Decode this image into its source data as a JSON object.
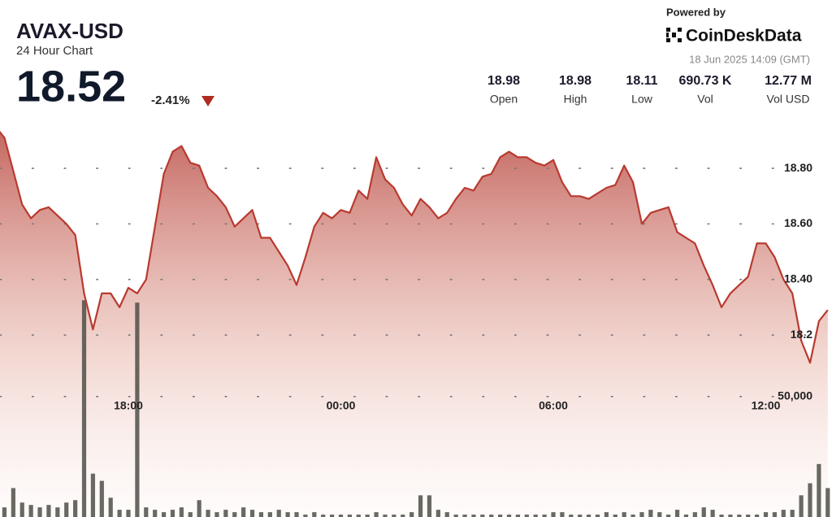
{
  "header": {
    "title": "AVAX-USD",
    "subtitle": "24 Hour Chart",
    "price": "18.52",
    "change": "-2.41%",
    "powered_by": "Powered by",
    "brand": "CoinDeskData",
    "timestamp": "18 Jun 2025 14:09 (GMT)",
    "stats": [
      {
        "value": "18.98",
        "label": "Open"
      },
      {
        "value": "18.98",
        "label": "High"
      },
      {
        "value": "18.11",
        "label": "Low"
      },
      {
        "value": "690.73 K",
        "label": "Vol"
      },
      {
        "value": "12.77 M",
        "label": "Vol USD"
      }
    ]
  },
  "chart_data": {
    "type": "line",
    "categories": [
      null,
      null,
      null,
      null,
      null,
      null,
      null,
      null,
      null,
      null,
      null,
      null,
      null,
      null,
      null,
      "18:00",
      null,
      null,
      null,
      null,
      null,
      null,
      null,
      null,
      null,
      null,
      null,
      null,
      null,
      null,
      null,
      null,
      null,
      null,
      null,
      null,
      null,
      null,
      null,
      "00:00",
      null,
      null,
      null,
      null,
      null,
      null,
      null,
      null,
      null,
      null,
      null,
      null,
      null,
      null,
      null,
      null,
      null,
      null,
      null,
      null,
      null,
      null,
      null,
      "06:00",
      null,
      null,
      null,
      null,
      null,
      null,
      null,
      null,
      null,
      null,
      null,
      null,
      null,
      null,
      null,
      null,
      null,
      null,
      null,
      null,
      null,
      null,
      null,
      "12:00",
      null,
      null,
      null,
      null,
      null,
      null,
      null
    ],
    "series": [
      {
        "color": "#b83a30",
        "values": [
          18.95,
          18.91,
          18.79,
          18.67,
          18.62,
          18.65,
          18.66,
          18.63,
          18.6,
          18.56,
          18.35,
          18.22,
          18.35,
          18.35,
          18.3,
          18.37,
          18.35,
          18.4,
          18.59,
          18.78,
          18.86,
          18.88,
          18.82,
          18.81,
          18.73,
          18.7,
          18.66,
          18.59,
          18.62,
          18.65,
          18.55,
          18.55,
          18.5,
          18.45,
          18.38,
          18.48,
          18.59,
          18.64,
          18.62,
          18.65,
          18.64,
          18.72,
          18.69,
          18.84,
          18.76,
          18.73,
          18.67,
          18.63,
          18.69,
          18.66,
          18.62,
          18.64,
          18.69,
          18.73,
          18.72,
          18.77,
          18.78,
          18.84,
          18.86,
          18.84,
          18.84,
          18.82,
          18.81,
          18.83,
          18.75,
          18.7,
          18.7,
          18.69,
          18.71,
          18.73,
          18.74,
          18.81,
          18.75,
          18.6,
          18.64,
          18.65,
          18.66,
          18.57,
          18.55,
          18.53,
          18.45,
          18.38,
          18.3,
          18.35,
          18.38,
          18.41,
          18.53,
          18.53,
          18.48,
          18.4,
          18.35,
          18.18,
          18.1,
          18.25,
          18.29
        ]
      },
      {
        "type": "bar",
        "axis": "y2",
        "color": "#4f4f48",
        "values": [
          4000,
          4000,
          12000,
          6000,
          5000,
          4000,
          5000,
          4000,
          6000,
          7000,
          90000,
          18000,
          15000,
          8000,
          3000,
          3000,
          89000,
          4000,
          3000,
          2000,
          3000,
          4000,
          2000,
          7000,
          3000,
          2000,
          3000,
          2000,
          4000,
          3000,
          2000,
          2000,
          3000,
          2000,
          2000,
          1000,
          2000,
          1000,
          1000,
          1000,
          1000,
          1000,
          1000,
          2000,
          1000,
          1000,
          1000,
          2000,
          9000,
          9000,
          3000,
          2000,
          1000,
          1000,
          1000,
          1000,
          1000,
          1000,
          1000,
          1000,
          1000,
          1000,
          1000,
          2000,
          2000,
          1000,
          1000,
          1000,
          1000,
          2000,
          1000,
          2000,
          1000,
          2000,
          3000,
          2000,
          1000,
          3000,
          1000,
          2000,
          4000,
          3000,
          1000,
          1000,
          1000,
          1000,
          1000,
          2000,
          2000,
          3000,
          3000,
          9000,
          14000,
          22000,
          12000
        ]
      }
    ],
    "ylim": [
      17.545,
      18.967
    ],
    "yticks": [
      18.2,
      {
        "value": 18.4,
        "label": "18.40"
      },
      {
        "value": 18.6,
        "label": "18.60"
      },
      {
        "value": 18.8,
        "label": "18.80"
      }
    ],
    "y2lim": [
      0,
      164000
    ],
    "y2ticks": [
      {
        "value": 50000,
        "label": "50,000"
      }
    ],
    "grid": true
  }
}
